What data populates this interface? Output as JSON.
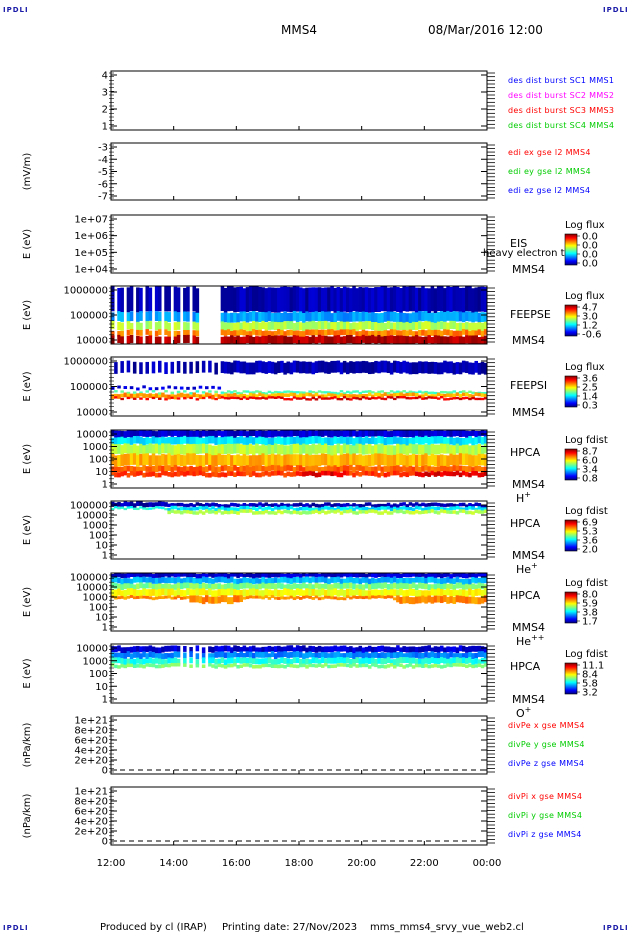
{
  "header": {
    "mission": "MMS4",
    "datetime": "08/Mar/2016 12:00",
    "corner_logo": "IPDLI"
  },
  "footer": {
    "producer": "Produced by cl (IRAP)",
    "print_date": "Printing date: 27/Nov/2023",
    "filename": "mms_mms4_srvy_vue_web2.cl"
  },
  "colors": {
    "blue": "#0000ff",
    "magenta": "#ff00ff",
    "red": "#ff0000",
    "green": "#00cc00"
  },
  "chart_data": {
    "type": "heatmap",
    "x_range": [
      "12:00",
      "00:00"
    ],
    "x_ticks": [
      "12:00",
      "14:00",
      "16:00",
      "18:00",
      "20:00",
      "22:00",
      "00:00"
    ],
    "panels": [
      {
        "id": "des-dist",
        "ylabel": "",
        "ylim": [
          0.6,
          4.5
        ],
        "yticks": [
          "4",
          "3",
          "2",
          "1"
        ],
        "legend": [
          {
            "text": "des dist burst SC1 MMS1",
            "color": "#0000ff"
          },
          {
            "text": "des dist burst SC2 MMS2",
            "color": "#ff00ff"
          },
          {
            "text": "des dist burst SC3 MMS3",
            "color": "#ff0000"
          },
          {
            "text": "des dist burst SC4 MMS4",
            "color": "#00cc00"
          }
        ]
      },
      {
        "id": "edi",
        "ylabel": "(mV/m)",
        "ylim": [
          -7.3,
          -2.4
        ],
        "yticks": [
          "-3",
          "-4",
          "-5",
          "-6",
          "-7"
        ],
        "legend": [
          {
            "text": "edi ex gse l2 MMS4",
            "color": "#ff0000"
          },
          {
            "text": "edi ey gse l2 MMS4",
            "color": "#00cc00"
          },
          {
            "text": "edi ez gse l2 MMS4",
            "color": "#0000ff"
          }
        ]
      },
      {
        "id": "eis",
        "ylabel": "E (eV)",
        "ylim": [
          "1e+04",
          "1e+07"
        ],
        "yticks": [
          "1e+07",
          "1e+06",
          "1e+05",
          "1e+04"
        ],
        "instrument": [
          "EIS",
          "MMS4"
        ],
        "overlay_text": "heavy electron to",
        "cbar_title": "Log flux",
        "cbar_ticks": [
          "0.0",
          "0.0",
          "0.0",
          "0.0"
        ]
      },
      {
        "id": "feepse",
        "ylabel": "E (eV)",
        "ylim": [
          10000,
          1000000
        ],
        "yticks": [
          "1000000",
          "100000",
          "10000"
        ],
        "instrument": [
          "FEEPSE",
          "MMS4"
        ],
        "cbar_title": "Log flux",
        "cbar_ticks": [
          "4.7",
          "3.0",
          "1.2",
          "-0.6"
        ],
        "spectrum": "feeps_e"
      },
      {
        "id": "feepsi",
        "ylabel": "E (eV)",
        "ylim": [
          10000,
          1000000
        ],
        "yticks": [
          "1000000",
          "100000",
          "10000"
        ],
        "instrument": [
          "FEEPSI",
          "MMS4"
        ],
        "cbar_title": "Log flux",
        "cbar_ticks": [
          "3.6",
          "2.5",
          "1.4",
          "0.3"
        ],
        "spectrum": "feeps_i"
      },
      {
        "id": "hpca-h",
        "ylabel": "E (eV)",
        "ylim": [
          1,
          30000
        ],
        "yticks": [
          "10000",
          "1000",
          "100",
          "10",
          "1"
        ],
        "instrument": [
          "HPCA",
          "MMS4"
        ],
        "species": "H",
        "charge": "+",
        "cbar_title": "Log fdist",
        "cbar_ticks": [
          "8.7",
          "6.0",
          "3.4",
          "0.8"
        ],
        "spectrum": "hpca_h"
      },
      {
        "id": "hpca-he",
        "ylabel": "E (eV)",
        "ylim": [
          1,
          100000
        ],
        "yticks": [
          "100000",
          "10000",
          "1000",
          "100",
          "10",
          "1"
        ],
        "instrument": [
          "HPCA",
          "MMS4"
        ],
        "species": "He",
        "charge": "+",
        "cbar_title": "Log fdist",
        "cbar_ticks": [
          "6.9",
          "5.3",
          "3.6",
          "2.0"
        ],
        "spectrum": "hpca_he"
      },
      {
        "id": "hpca-hepp",
        "ylabel": "E (eV)",
        "ylim": [
          1,
          100000
        ],
        "yticks": [
          "100000",
          "10000",
          "1000",
          "100",
          "10",
          "1"
        ],
        "instrument": [
          "HPCA",
          "MMS4"
        ],
        "species": "He",
        "charge": "++",
        "cbar_title": "Log fdist",
        "cbar_ticks": [
          "8.0",
          "5.9",
          "3.8",
          "1.7"
        ],
        "spectrum": "hpca_hepp"
      },
      {
        "id": "hpca-o",
        "ylabel": "E (eV)",
        "ylim": [
          1,
          30000
        ],
        "yticks": [
          "10000",
          "1000",
          "100",
          "10",
          "1"
        ],
        "instrument": [
          "HPCA",
          "MMS4"
        ],
        "species": "O",
        "charge": "+",
        "cbar_title": "Log fdist",
        "cbar_ticks": [
          "11.1",
          "8.4",
          "5.8",
          "3.2"
        ],
        "spectrum": "hpca_o"
      },
      {
        "id": "divpe",
        "ylabel": "(nPa/km)",
        "ylim": [
          "0",
          "1e+21"
        ],
        "yticks": [
          "1e+21",
          "8e+20",
          "6e+20",
          "4e+20",
          "2e+20",
          "0"
        ],
        "zero_line": true,
        "legend": [
          {
            "text": "divPe x gse MMS4",
            "color": "#ff0000"
          },
          {
            "text": "divPe y gse MMS4",
            "color": "#00cc00"
          },
          {
            "text": "divPe z gse MMS4",
            "color": "#0000ff"
          }
        ]
      },
      {
        "id": "divpi",
        "ylabel": "(nPa/km)",
        "ylim": [
          "0",
          "1e+21"
        ],
        "yticks": [
          "1e+21",
          "8e+20",
          "6e+20",
          "4e+20",
          "2e+20",
          "0"
        ],
        "zero_line": true,
        "legend": [
          {
            "text": "divPi x gse MMS4",
            "color": "#ff0000"
          },
          {
            "text": "divPi y gse MMS4",
            "color": "#00cc00"
          },
          {
            "text": "divPi z gse MMS4",
            "color": "#0000ff"
          }
        ]
      }
    ]
  }
}
